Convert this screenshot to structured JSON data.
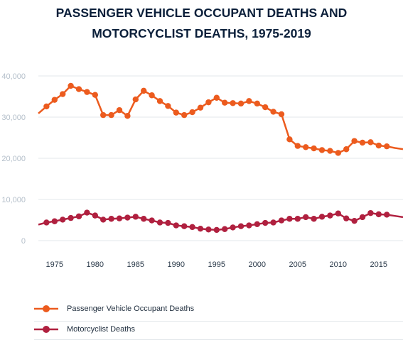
{
  "chart_data": {
    "type": "line",
    "title_lines": [
      "PASSENGER VEHICLE OCCUPANT DEATHS AND",
      "MOTORCYCLIST DEATHS, 1975-2019"
    ],
    "xlabel": "",
    "ylabel": "",
    "xlim": [
      1973,
      2018
    ],
    "ylim": [
      0,
      40000
    ],
    "y_ticks": [
      0,
      10000,
      20000,
      30000,
      40000
    ],
    "y_tick_labels": [
      "0",
      "10,000",
      "20,000",
      "30,000",
      "40,000"
    ],
    "x_ticks": [
      1975,
      1980,
      1985,
      1990,
      1995,
      2000,
      2005,
      2010,
      2015
    ],
    "grid": "horizontal",
    "legend_position": "bottom",
    "series": [
      {
        "name": "Passenger Vehicle Occupant Deaths",
        "color": "#ec5b1e",
        "x": [
          1973,
          1974,
          1975,
          1976,
          1977,
          1978,
          1979,
          1980,
          1981,
          1982,
          1983,
          1984,
          1985,
          1986,
          1987,
          1988,
          1989,
          1990,
          1991,
          1992,
          1993,
          1994,
          1995,
          1996,
          1997,
          1998,
          1999,
          2000,
          2001,
          2002,
          2003,
          2004,
          2005,
          2006,
          2007,
          2008,
          2009,
          2010,
          2011,
          2012,
          2013,
          2014,
          2015,
          2016,
          2017,
          2018
        ],
        "y": [
          30900,
          32600,
          34200,
          35600,
          37600,
          36800,
          36100,
          35400,
          30500,
          30500,
          31700,
          30300,
          34300,
          36400,
          35300,
          33900,
          32700,
          31100,
          30500,
          31200,
          32300,
          33600,
          34700,
          33500,
          33400,
          33300,
          33900,
          33300,
          32400,
          31300,
          30700,
          24600,
          23000,
          22700,
          22400,
          22000,
          21800,
          21300,
          22200,
          24200,
          23800,
          23900,
          23100,
          22900,
          22500,
          22200
        ],
        "markers_from": 1974,
        "markers_to": 2016
      },
      {
        "name": "Motorcyclist Deaths",
        "color": "#b0203f",
        "x": [
          1973,
          1974,
          1975,
          1976,
          1977,
          1978,
          1979,
          1980,
          1981,
          1982,
          1983,
          1984,
          1985,
          1986,
          1987,
          1988,
          1989,
          1990,
          1991,
          1992,
          1993,
          1994,
          1995,
          1996,
          1997,
          1998,
          1999,
          2000,
          2001,
          2002,
          2003,
          2004,
          2005,
          2006,
          2007,
          2008,
          2009,
          2010,
          2011,
          2012,
          2013,
          2014,
          2015,
          2016,
          2017,
          2018
        ],
        "y": [
          3900,
          4400,
          4700,
          5100,
          5500,
          5900,
          6800,
          6100,
          5100,
          5300,
          5400,
          5600,
          5800,
          5300,
          4900,
          4400,
          4300,
          3700,
          3500,
          3300,
          2900,
          2700,
          2600,
          2800,
          3200,
          3500,
          3700,
          4000,
          4300,
          4400,
          4900,
          5300,
          5300,
          5700,
          5300,
          5800,
          6100,
          6600,
          5400,
          4800,
          5700,
          6700,
          6400,
          6300,
          6000,
          5700
        ],
        "markers_from": 1974,
        "markers_to": 2016
      }
    ]
  }
}
